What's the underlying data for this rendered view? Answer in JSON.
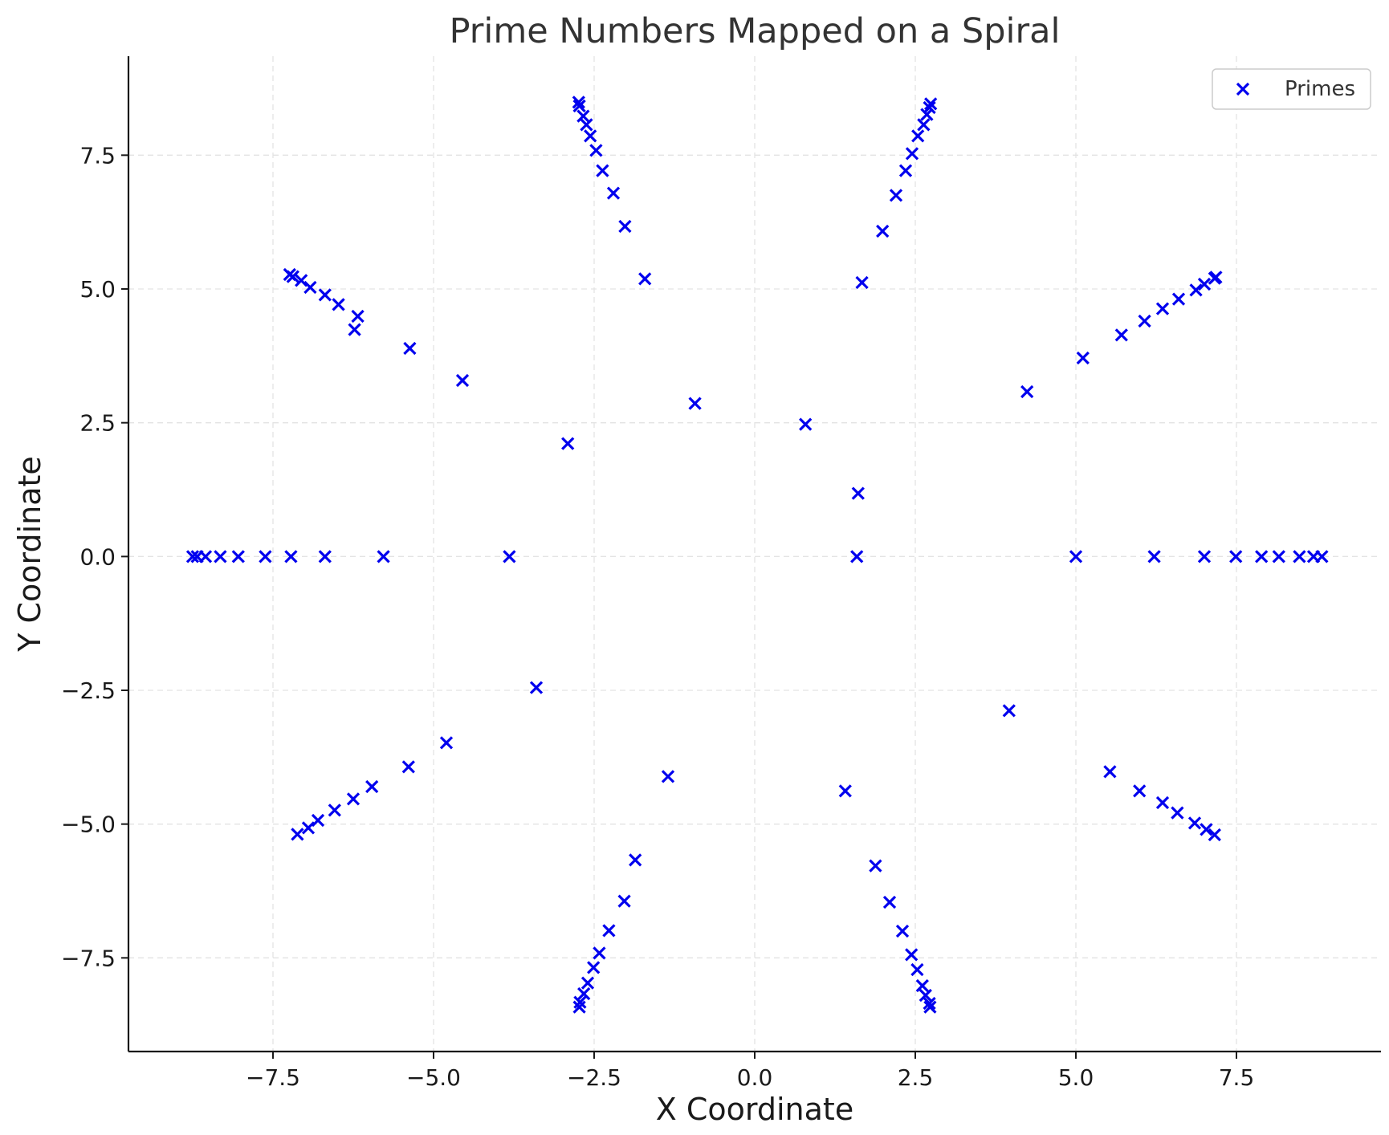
{
  "chart_data": {
    "type": "scatter",
    "title": "Prime Numbers Mapped on a Spiral",
    "xlabel": "X Coordinate",
    "ylabel": "Y Coordinate",
    "xlim": [
      -9.75,
      9.75
    ],
    "ylim": [
      -9.25,
      9.35
    ],
    "xticks": [
      -7.5,
      -5.0,
      -2.5,
      0.0,
      2.5,
      5.0,
      7.5
    ],
    "xtick_labels": [
      "−7.5",
      "−5.0",
      "−2.5",
      "0.0",
      "2.5",
      "5.0",
      "7.5"
    ],
    "yticks": [
      -7.5,
      -5.0,
      -2.5,
      0.0,
      2.5,
      5.0,
      7.5
    ],
    "ytick_labels": [
      "−7.5",
      "−5.0",
      "−2.5",
      "0.0",
      "2.5",
      "5.0",
      "7.5"
    ],
    "grid": true,
    "legend": {
      "position": "top-right",
      "entries": [
        "Primes"
      ]
    },
    "marker": "x",
    "color": "#0000ee",
    "series": [
      {
        "name": "Primes",
        "points": [
          [
            1.59,
            0.0
          ],
          [
            1.61,
            1.18
          ],
          [
            0.79,
            2.47
          ],
          [
            -0.93,
            2.86
          ],
          [
            -2.91,
            2.11
          ],
          [
            -3.82,
            0.0
          ],
          [
            -3.4,
            -2.45
          ],
          [
            -1.35,
            -4.11
          ],
          [
            1.41,
            -4.38
          ],
          [
            3.96,
            -2.88
          ],
          [
            5.0,
            0.0
          ],
          [
            4.24,
            3.08
          ],
          [
            1.67,
            5.12
          ],
          [
            -1.71,
            5.19
          ],
          [
            -4.55,
            3.29
          ],
          [
            -5.78,
            0.0
          ],
          [
            -5.39,
            -3.93
          ],
          [
            -4.8,
            -3.48
          ],
          [
            -1.86,
            -5.67
          ],
          [
            1.88,
            -5.78
          ],
          [
            5.53,
            -4.02
          ],
          [
            6.22,
            0.0
          ],
          [
            5.11,
            3.71
          ],
          [
            1.99,
            6.08
          ],
          [
            -2.02,
            6.17
          ],
          [
            -5.37,
            3.89
          ],
          [
            -6.69,
            0.0
          ],
          [
            -6.23,
            4.24
          ],
          [
            -2.2,
            6.79
          ],
          [
            2.2,
            6.75
          ],
          [
            5.71,
            4.14
          ],
          [
            7.0,
            0.0
          ],
          [
            6.07,
            4.4
          ],
          [
            2.35,
            7.21
          ],
          [
            -2.37,
            7.21
          ],
          [
            -6.18,
            4.49
          ],
          [
            -7.22,
            0.0
          ],
          [
            -6.48,
            4.71
          ],
          [
            -2.47,
            7.59
          ],
          [
            2.45,
            7.53
          ],
          [
            6.35,
            4.63
          ],
          [
            7.49,
            0.0
          ],
          [
            6.6,
            4.81
          ],
          [
            2.54,
            7.86
          ],
          [
            -2.56,
            7.86
          ],
          [
            -6.69,
            4.89
          ],
          [
            -7.62,
            0.0
          ],
          [
            -6.92,
            5.03
          ],
          [
            -2.62,
            8.07
          ],
          [
            2.63,
            8.07
          ],
          [
            6.87,
            4.98
          ],
          [
            7.89,
            0.0
          ],
          [
            7.0,
            5.09
          ],
          [
            2.68,
            8.26
          ],
          [
            -2.67,
            8.23
          ],
          [
            -7.06,
            5.16
          ],
          [
            -8.04,
            0.0
          ],
          [
            -7.19,
            5.23
          ],
          [
            -2.73,
            8.42
          ],
          [
            2.72,
            8.39
          ],
          [
            7.16,
            5.2
          ],
          [
            8.16,
            0.0
          ],
          [
            7.18,
            5.22
          ],
          [
            2.74,
            8.46
          ],
          [
            -2.74,
            8.49
          ],
          [
            -7.24,
            5.27
          ],
          [
            -8.32,
            0.0
          ],
          [
            -8.55,
            0.0
          ],
          [
            -8.68,
            0.0
          ],
          [
            -8.75,
            0.0
          ],
          [
            8.48,
            0.0
          ],
          [
            8.7,
            0.0
          ],
          [
            8.83,
            0.0
          ],
          [
            -5.96,
            -4.3
          ],
          [
            -6.25,
            -4.53
          ],
          [
            -6.54,
            -4.74
          ],
          [
            -6.8,
            -4.93
          ],
          [
            -6.95,
            -5.07
          ],
          [
            -7.12,
            -5.19
          ],
          [
            -2.03,
            -6.44
          ],
          [
            -2.27,
            -6.99
          ],
          [
            -2.42,
            -7.41
          ],
          [
            -2.51,
            -7.68
          ],
          [
            -2.6,
            -7.97
          ],
          [
            -2.66,
            -8.17
          ],
          [
            -2.72,
            -8.33
          ],
          [
            -2.73,
            -8.42
          ],
          [
            2.1,
            -6.46
          ],
          [
            2.3,
            -7.0
          ],
          [
            2.44,
            -7.44
          ],
          [
            2.53,
            -7.72
          ],
          [
            2.61,
            -8.02
          ],
          [
            2.66,
            -8.2
          ],
          [
            2.72,
            -8.35
          ],
          [
            2.73,
            -8.42
          ],
          [
            5.99,
            -4.38
          ],
          [
            6.35,
            -4.6
          ],
          [
            6.58,
            -4.79
          ],
          [
            6.85,
            -4.98
          ],
          [
            7.03,
            -5.1
          ],
          [
            7.16,
            -5.2
          ]
        ]
      }
    ]
  }
}
